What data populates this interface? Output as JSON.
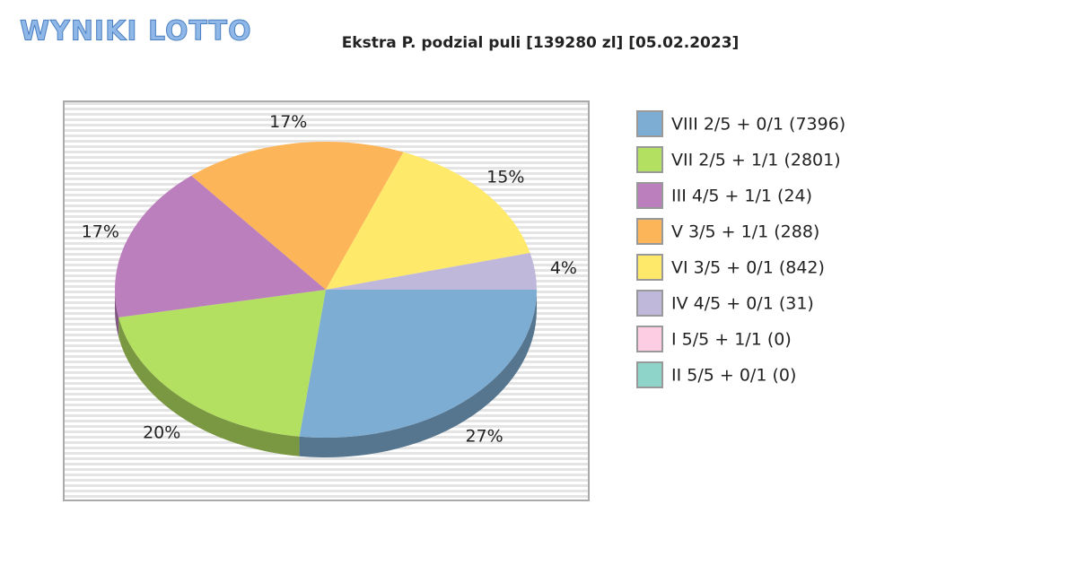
{
  "logo": "WYNIKI LOTTO",
  "chart_data": {
    "type": "pie",
    "title": "Ekstra P. podzial puli [139280 zl] [05.02.2023]",
    "categories": [
      "VIII 2/5 + 0/1 (7396)",
      "VII 2/5 + 1/1 (2801)",
      "III 4/5 + 1/1 (24)",
      "V 3/5 + 1/1 (288)",
      "VI 3/5 + 0/1 (842)",
      "IV 4/5 + 0/1 (31)",
      "I 5/5 + 1/1 (0)",
      "II 5/5 + 0/1 (0)"
    ],
    "values": [
      27,
      20,
      17,
      17,
      15,
      4,
      0,
      0
    ],
    "value_labels": [
      "27%",
      "20%",
      "17%",
      "17%",
      "15%",
      "4%",
      null,
      null
    ],
    "colors": [
      "#7eadd4",
      "#b3e060",
      "#bc7fbd",
      "#fdb55a",
      "#fee96a",
      "#bfb8da",
      "#fdcde3",
      "#8fd4c8"
    ],
    "legend": "right"
  }
}
